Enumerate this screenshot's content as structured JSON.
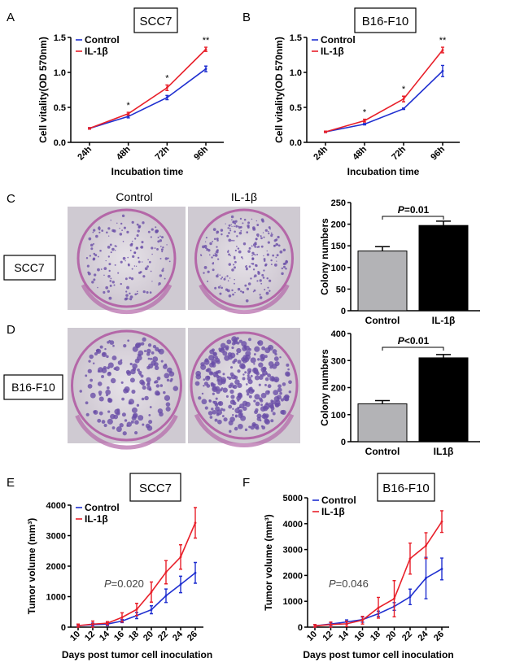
{
  "colors": {
    "control": "#1f2fd0",
    "il1b": "#e8202a",
    "bar_control": "#b3b3b6",
    "bar_il1b": "#000000",
    "plate": "#d9d4dc",
    "colony": "#6a4fa8",
    "rim": "#b467a8"
  },
  "panel_c": {
    "letter": "C",
    "col_labels": [
      "Control",
      "IL-1β"
    ],
    "row_label": "SCC7"
  },
  "panel_d": {
    "letter": "D",
    "row_label": "B16-F10"
  },
  "chart_data": [
    {
      "id": "A",
      "type": "line",
      "letter": "A",
      "title": "SCC7",
      "xlabel": "Incubation time",
      "ylabel": "Cell vitality(OD 570nm)",
      "categories": [
        "24h",
        "48h",
        "72h",
        "96h"
      ],
      "ylim": [
        0,
        1.5
      ],
      "yticks": [
        0,
        0.5,
        1.0,
        1.5
      ],
      "ytick_labels": [
        "0.0",
        "0.5",
        "1.0",
        "1.5"
      ],
      "legend": "top-left",
      "significance": [
        "",
        "*",
        "*",
        "**"
      ],
      "series": [
        {
          "name": "Control",
          "color_key": "control",
          "values": [
            0.2,
            0.37,
            0.64,
            1.05
          ],
          "errors": [
            0.01,
            0.02,
            0.03,
            0.04
          ]
        },
        {
          "name": "IL-1β",
          "color_key": "il1b",
          "values": [
            0.2,
            0.41,
            0.78,
            1.33
          ],
          "errors": [
            0.01,
            0.02,
            0.04,
            0.03
          ]
        }
      ]
    },
    {
      "id": "B",
      "type": "line",
      "letter": "B",
      "title": "B16-F10",
      "xlabel": "Incubation time",
      "ylabel": "Cell vitality(OD 570nm)",
      "categories": [
        "24h",
        "48h",
        "72h",
        "96h"
      ],
      "ylim": [
        0,
        1.5
      ],
      "yticks": [
        0,
        0.5,
        1.0,
        1.5
      ],
      "ytick_labels": [
        "0.0",
        "0.5",
        "1.0",
        "1.5"
      ],
      "legend": "top-left",
      "significance": [
        "",
        "*",
        "*",
        "**"
      ],
      "series": [
        {
          "name": "Control",
          "color_key": "control",
          "values": [
            0.15,
            0.26,
            0.48,
            1.02
          ],
          "errors": [
            0.01,
            0.01,
            0.01,
            0.08
          ]
        },
        {
          "name": "IL-1β",
          "color_key": "il1b",
          "values": [
            0.15,
            0.31,
            0.62,
            1.32
          ],
          "errors": [
            0.01,
            0.02,
            0.04,
            0.04
          ]
        }
      ]
    },
    {
      "id": "C",
      "type": "bar",
      "ylabel": "Colony numbers",
      "categories": [
        "Control",
        "IL-1β"
      ],
      "values": [
        138,
        197
      ],
      "errors": [
        10,
        10
      ],
      "ylim": [
        0,
        250
      ],
      "yticks": [
        0,
        50,
        100,
        150,
        200,
        250
      ],
      "annotation": {
        "p_label": "P",
        "p_text": "=0.01"
      }
    },
    {
      "id": "D",
      "type": "bar",
      "ylabel": "Colony numbers",
      "categories": [
        "Control",
        "IL1β"
      ],
      "values": [
        140,
        310
      ],
      "errors": [
        12,
        12
      ],
      "ylim": [
        0,
        400
      ],
      "yticks": [
        0,
        100,
        200,
        300,
        400
      ],
      "annotation": {
        "p_label": "P",
        "p_text": "<0.01"
      }
    },
    {
      "id": "E",
      "type": "line",
      "letter": "E",
      "title": "SCC7",
      "xlabel": "Days post tumor cell inoculation",
      "ylabel": "Tumor volume (mm³)",
      "categories": [
        "10",
        "12",
        "14",
        "16",
        "18",
        "20",
        "22",
        "24",
        "26"
      ],
      "ylim": [
        0,
        4000
      ],
      "yticks": [
        0,
        1000,
        2000,
        3000,
        4000
      ],
      "ytick_labels": [
        "0",
        "1000",
        "2000",
        "3000",
        "4000"
      ],
      "legend": "top-left",
      "annotation": {
        "p_label": "P",
        "p_text": "=0.020"
      },
      "series": [
        {
          "name": "Control",
          "color_key": "control",
          "values": [
            50,
            80,
            100,
            200,
            380,
            570,
            1030,
            1400,
            1780
          ],
          "errors": [
            30,
            50,
            50,
            50,
            100,
            130,
            220,
            270,
            340
          ]
        },
        {
          "name": "IL-1β",
          "color_key": "il1b",
          "values": [
            50,
            100,
            130,
            320,
            580,
            1150,
            1800,
            2300,
            3420
          ],
          "errors": [
            50,
            100,
            50,
            150,
            200,
            330,
            380,
            400,
            500
          ]
        }
      ]
    },
    {
      "id": "F",
      "type": "line",
      "letter": "F",
      "title": "B16-F10",
      "xlabel": "Days post tumor cell inoculation",
      "ylabel": "Tumor volume (mm³)",
      "categories": [
        "10",
        "12",
        "14",
        "16",
        "18",
        "20",
        "22",
        "24",
        "26"
      ],
      "ylim": [
        0,
        5000
      ],
      "yticks": [
        0,
        1000,
        2000,
        3000,
        4000,
        5000
      ],
      "ytick_labels": [
        "0",
        "1000",
        "2000",
        "3000",
        "4000",
        "5000"
      ],
      "legend": "top-left",
      "annotation": {
        "p_label": "P",
        "p_text": "=0.046"
      },
      "series": [
        {
          "name": "Control",
          "color_key": "control",
          "values": [
            50,
            120,
            200,
            290,
            520,
            800,
            1170,
            1900,
            2250
          ],
          "errors": [
            50,
            60,
            80,
            100,
            100,
            150,
            300,
            800,
            420
          ]
        },
        {
          "name": "IL-1β",
          "color_key": "il1b",
          "values": [
            50,
            100,
            130,
            270,
            750,
            1100,
            2650,
            3150,
            4080
          ],
          "errors": [
            50,
            100,
            100,
            150,
            400,
            700,
            600,
            500,
            420
          ]
        }
      ]
    }
  ]
}
